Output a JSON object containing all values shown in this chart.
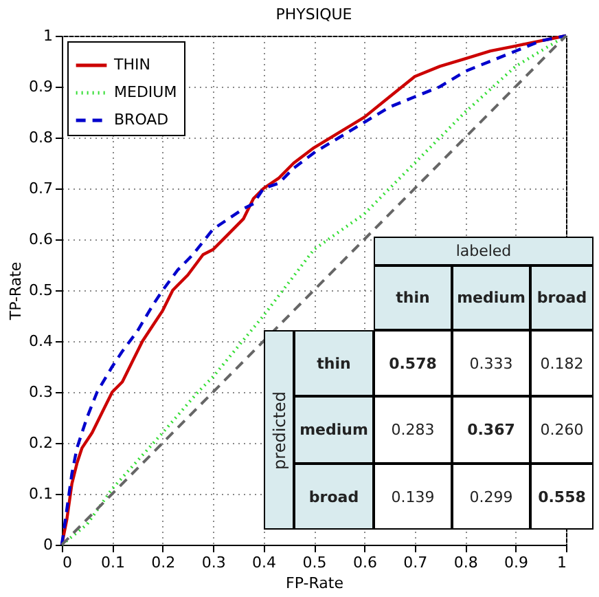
{
  "chart_data": {
    "type": "line",
    "title": "PHYSIQUE",
    "xlabel": "FP-Rate",
    "ylabel": "TP-Rate",
    "xlim": [
      0,
      1
    ],
    "ylim": [
      0,
      1
    ],
    "xticks": [
      0,
      0.1,
      0.2,
      0.3,
      0.4,
      0.5,
      0.6,
      0.7,
      0.8,
      0.9,
      1
    ],
    "yticks": [
      0,
      0.1,
      0.2,
      0.3,
      0.4,
      0.5,
      0.6,
      0.7,
      0.8,
      0.9,
      1
    ],
    "grid": true,
    "legend": "top left",
    "series": [
      {
        "name": "THIN",
        "color": "#cc0000",
        "line_style": "solid",
        "x": [
          0,
          0.01,
          0.02,
          0.03,
          0.04,
          0.06,
          0.08,
          0.1,
          0.12,
          0.14,
          0.16,
          0.18,
          0.2,
          0.22,
          0.25,
          0.28,
          0.3,
          0.33,
          0.36,
          0.38,
          0.4,
          0.43,
          0.46,
          0.5,
          0.55,
          0.6,
          0.65,
          0.7,
          0.75,
          0.8,
          0.85,
          0.9,
          0.95,
          1
        ],
        "values": [
          0,
          0.05,
          0.12,
          0.16,
          0.19,
          0.22,
          0.26,
          0.3,
          0.32,
          0.36,
          0.4,
          0.43,
          0.46,
          0.5,
          0.53,
          0.57,
          0.58,
          0.61,
          0.64,
          0.68,
          0.7,
          0.72,
          0.75,
          0.78,
          0.81,
          0.84,
          0.88,
          0.92,
          0.94,
          0.955,
          0.97,
          0.98,
          0.99,
          1
        ]
      },
      {
        "name": "MEDIUM",
        "color": "#33dd33",
        "line_style": "dotted",
        "x": [
          0,
          0.05,
          0.1,
          0.2,
          0.27,
          0.3,
          0.4,
          0.5,
          0.6,
          0.7,
          0.8,
          0.9,
          1
        ],
        "values": [
          0,
          0.04,
          0.11,
          0.22,
          0.3,
          0.33,
          0.45,
          0.58,
          0.65,
          0.75,
          0.85,
          0.94,
          1
        ]
      },
      {
        "name": "BROAD",
        "color": "#0000cc",
        "line_style": "dashed",
        "x": [
          0,
          0.01,
          0.02,
          0.03,
          0.05,
          0.07,
          0.1,
          0.12,
          0.15,
          0.18,
          0.2,
          0.23,
          0.26,
          0.3,
          0.33,
          0.36,
          0.38,
          0.4,
          0.43,
          0.46,
          0.5,
          0.55,
          0.6,
          0.65,
          0.7,
          0.75,
          0.8,
          0.85,
          0.9,
          0.95,
          1
        ],
        "values": [
          0,
          0.07,
          0.14,
          0.19,
          0.25,
          0.3,
          0.35,
          0.38,
          0.42,
          0.47,
          0.5,
          0.54,
          0.57,
          0.62,
          0.64,
          0.66,
          0.67,
          0.7,
          0.71,
          0.74,
          0.77,
          0.8,
          0.83,
          0.86,
          0.88,
          0.9,
          0.93,
          0.95,
          0.97,
          0.99,
          1
        ]
      },
      {
        "color": "#666666",
        "line_style": "dashed",
        "x": [
          0,
          1
        ],
        "values": [
          0,
          1
        ]
      }
    ],
    "annotations": [
      "labeled",
      "predicted",
      "thin",
      "medium",
      "broad",
      "thin",
      "medium",
      "broad",
      "0.578",
      "0.333",
      "0.182",
      "0.283",
      "0.367",
      "0.260",
      "0.139",
      "0.299",
      "0.558"
    ]
  }
}
